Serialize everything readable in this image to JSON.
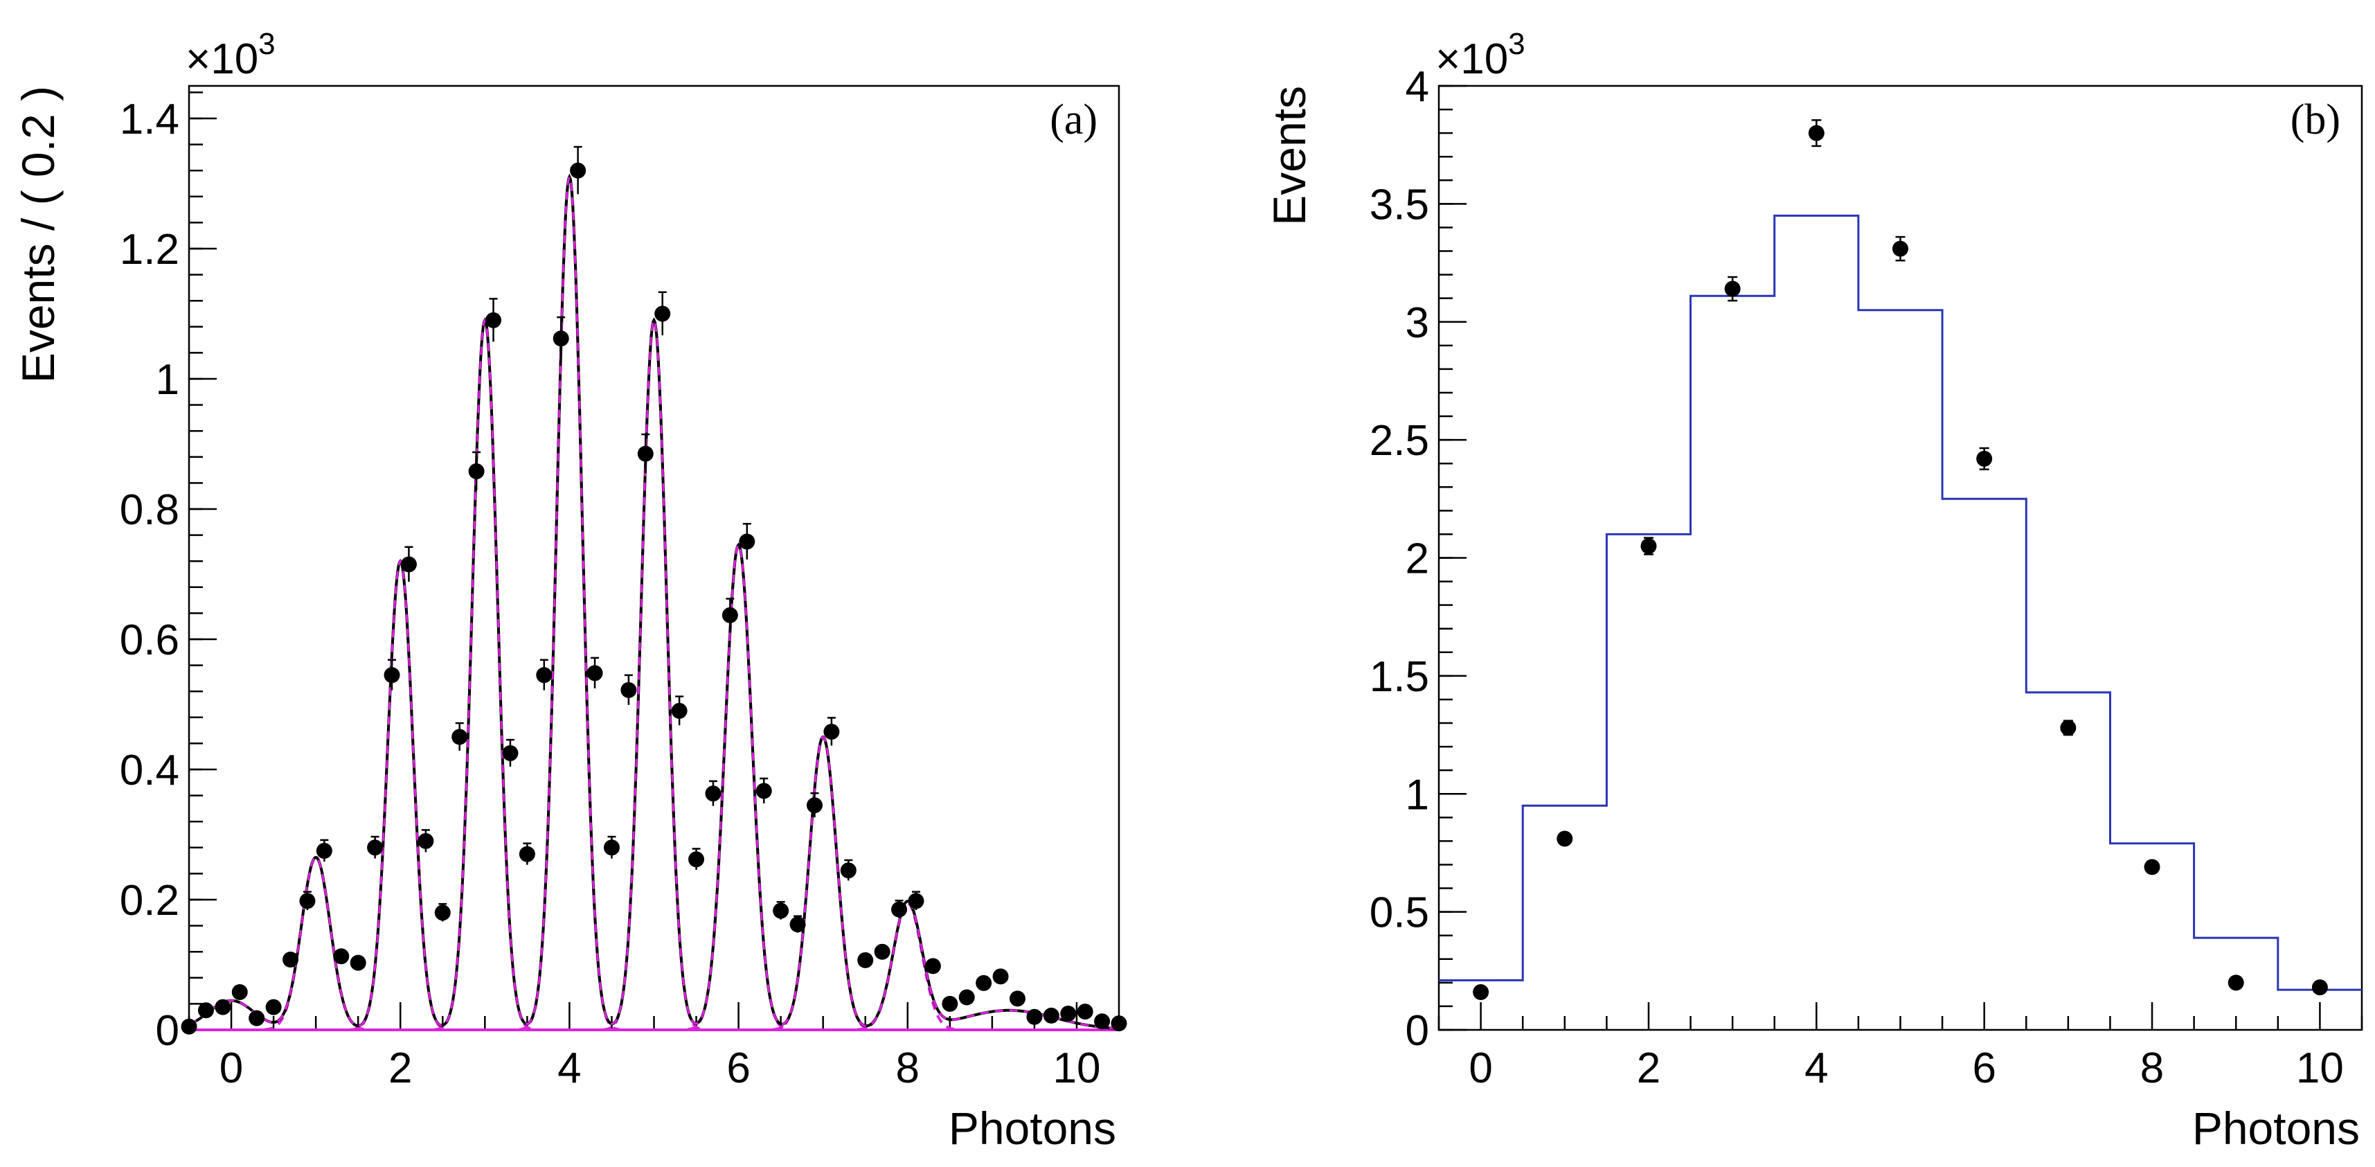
{
  "chart_data": [
    {
      "panel_label": "(a)",
      "type": "scatter",
      "xlabel": "Photons",
      "ylabel": "Events / ( 0.2 )",
      "scale_label": "×10",
      "scale_exp": "3",
      "xlim": [
        -0.5,
        10.5
      ],
      "ylim": [
        0,
        1.45
      ],
      "xticks": [
        0,
        2,
        4,
        6,
        8,
        10
      ],
      "xtick_labels": [
        "0",
        "2",
        "4",
        "6",
        "8",
        "10"
      ],
      "yticks": [
        0,
        0.2,
        0.4,
        0.6,
        0.8,
        1,
        1.2,
        1.4
      ],
      "ytick_labels": [
        "0",
        "0.2",
        "0.4",
        "0.6",
        "0.8",
        "1",
        "1.2",
        "1.4"
      ],
      "colors": {
        "fit": "#000000",
        "components": "#dd22dd",
        "points": "#000000"
      },
      "points": [
        [
          -0.5,
          0.005
        ],
        [
          -0.3,
          0.03
        ],
        [
          -0.1,
          0.035
        ],
        [
          0.1,
          0.058
        ],
        [
          0.3,
          0.018
        ],
        [
          0.5,
          0.035
        ],
        [
          0.7,
          0.108
        ],
        [
          0.9,
          0.198
        ],
        [
          1.1,
          0.275
        ],
        [
          1.3,
          0.113
        ],
        [
          1.5,
          0.103
        ],
        [
          1.7,
          0.28
        ],
        [
          1.9,
          0.545
        ],
        [
          2.1,
          0.715
        ],
        [
          2.3,
          0.29
        ],
        [
          2.5,
          0.18
        ],
        [
          2.7,
          0.45
        ],
        [
          2.9,
          0.858
        ],
        [
          3.1,
          1.09
        ],
        [
          3.3,
          0.425
        ],
        [
          3.5,
          0.27
        ],
        [
          3.7,
          0.545
        ],
        [
          3.9,
          1.062
        ],
        [
          4.1,
          1.32
        ],
        [
          4.3,
          0.548
        ],
        [
          4.5,
          0.28
        ],
        [
          4.7,
          0.522
        ],
        [
          4.9,
          0.885
        ],
        [
          5.1,
          1.1
        ],
        [
          5.3,
          0.49
        ],
        [
          5.5,
          0.262
        ],
        [
          5.7,
          0.363
        ],
        [
          5.9,
          0.637
        ],
        [
          6.1,
          0.75
        ],
        [
          6.3,
          0.367
        ],
        [
          6.5,
          0.183
        ],
        [
          6.7,
          0.162
        ],
        [
          6.9,
          0.345
        ],
        [
          7.1,
          0.458
        ],
        [
          7.3,
          0.245
        ],
        [
          7.5,
          0.107
        ],
        [
          7.7,
          0.12
        ],
        [
          7.9,
          0.185
        ],
        [
          8.1,
          0.198
        ],
        [
          8.3,
          0.098
        ],
        [
          8.5,
          0.04
        ],
        [
          8.7,
          0.05
        ],
        [
          8.9,
          0.072
        ],
        [
          9.1,
          0.082
        ],
        [
          9.3,
          0.048
        ],
        [
          9.5,
          0.02
        ],
        [
          9.7,
          0.022
        ],
        [
          9.9,
          0.025
        ],
        [
          10.1,
          0.028
        ],
        [
          10.3,
          0.013
        ],
        [
          10.5,
          0.01
        ]
      ],
      "fit_background": {
        "amplitude": 0.045,
        "center": 0,
        "sigma": 0.27,
        "tail_amplitude": 0.03,
        "tail_center": 9.2,
        "tail_sigma": 0.55
      },
      "components": [
        {
          "center": 1.0,
          "amplitude": 0.265,
          "sigma": 0.17
        },
        {
          "center": 2.0,
          "amplitude": 0.72,
          "sigma": 0.15
        },
        {
          "center": 3.0,
          "amplitude": 1.09,
          "sigma": 0.15
        },
        {
          "center": 4.0,
          "amplitude": 1.31,
          "sigma": 0.15
        },
        {
          "center": 5.0,
          "amplitude": 1.09,
          "sigma": 0.15
        },
        {
          "center": 6.0,
          "amplitude": 0.745,
          "sigma": 0.16
        },
        {
          "center": 7.0,
          "amplitude": 0.45,
          "sigma": 0.16
        },
        {
          "center": 8.0,
          "amplitude": 0.195,
          "sigma": 0.17
        }
      ]
    },
    {
      "panel_label": "(b)",
      "type": "bar",
      "xlabel": "Photons",
      "ylabel": "Events",
      "scale_label": "×10",
      "scale_exp": "3",
      "xlim": [
        -0.5,
        10.5
      ],
      "ylim": [
        0,
        4
      ],
      "xticks": [
        0,
        2,
        4,
        6,
        8,
        10
      ],
      "xtick_labels": [
        "0",
        "2",
        "4",
        "6",
        "8",
        "10"
      ],
      "yticks": [
        0,
        0.5,
        1,
        1.5,
        2,
        2.5,
        3,
        3.5,
        4
      ],
      "ytick_labels": [
        "0",
        "0.5",
        "1",
        "1.5",
        "2",
        "2.5",
        "3",
        "3.5",
        "4"
      ],
      "colors": {
        "histogram": "#2b35b5",
        "points": "#000000"
      },
      "histogram": {
        "categories": [
          0,
          1,
          2,
          3,
          4,
          5,
          6,
          7,
          8,
          9,
          10
        ],
        "values": [
          0.21,
          0.95,
          2.1,
          3.11,
          3.45,
          3.05,
          2.25,
          1.43,
          0.79,
          0.39,
          0.17
        ]
      },
      "points": {
        "x": [
          0,
          1,
          2,
          3,
          4,
          5,
          6,
          7,
          8,
          9,
          10
        ],
        "y": [
          0.16,
          0.81,
          2.05,
          3.14,
          3.8,
          3.31,
          2.42,
          1.28,
          0.69,
          0.2,
          0.18
        ],
        "err": [
          0.01,
          0.02,
          0.035,
          0.05,
          0.055,
          0.05,
          0.045,
          0.03,
          0.02,
          0.01,
          0.01
        ]
      }
    }
  ]
}
